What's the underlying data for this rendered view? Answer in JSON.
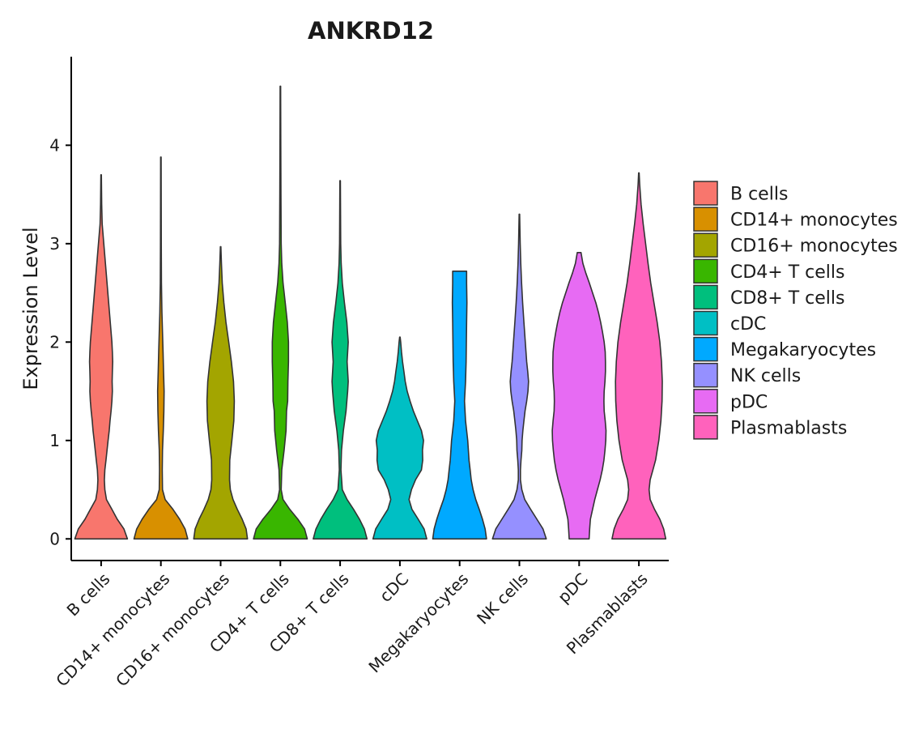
{
  "chart_data": {
    "type": "violin",
    "title": "ANKRD12",
    "xlabel": "",
    "ylabel": "Expression Level",
    "ylim": [
      -0.22,
      4.9
    ],
    "yticks": [
      0,
      1,
      2,
      3,
      4
    ],
    "legend_position": "right",
    "categories": [
      "B cells",
      "CD14+ monocytes",
      "CD16+ monocytes",
      "CD4+ T cells",
      "CD8+ T cells",
      "cDC",
      "Megakaryocytes",
      "NK cells",
      "pDC",
      "Plasmablasts"
    ],
    "series": [
      {
        "name": "B cells",
        "color": "#F8766D",
        "max": 3.7,
        "density": [
          [
            0,
            0.98
          ],
          [
            0.1,
            0.85
          ],
          [
            0.2,
            0.6
          ],
          [
            0.3,
            0.4
          ],
          [
            0.4,
            0.2
          ],
          [
            0.5,
            0.14
          ],
          [
            0.6,
            0.12
          ],
          [
            0.7,
            0.14
          ],
          [
            0.8,
            0.18
          ],
          [
            0.9,
            0.22
          ],
          [
            1.0,
            0.26
          ],
          [
            1.1,
            0.3
          ],
          [
            1.2,
            0.33
          ],
          [
            1.3,
            0.37
          ],
          [
            1.4,
            0.4
          ],
          [
            1.5,
            0.42
          ],
          [
            1.6,
            0.41
          ],
          [
            1.7,
            0.42
          ],
          [
            1.8,
            0.43
          ],
          [
            1.9,
            0.42
          ],
          [
            2.0,
            0.4
          ],
          [
            2.2,
            0.34
          ],
          [
            2.4,
            0.28
          ],
          [
            2.6,
            0.22
          ],
          [
            2.8,
            0.16
          ],
          [
            3.0,
            0.1
          ],
          [
            3.2,
            0.04
          ],
          [
            3.4,
            0.02
          ],
          [
            3.7,
            0.01
          ]
        ]
      },
      {
        "name": "CD14+ monocytes",
        "color": "#D89000",
        "max": 3.88,
        "density": [
          [
            0,
            1.0
          ],
          [
            0.1,
            0.9
          ],
          [
            0.2,
            0.7
          ],
          [
            0.3,
            0.45
          ],
          [
            0.4,
            0.16
          ],
          [
            0.5,
            0.06
          ],
          [
            0.7,
            0.05
          ],
          [
            0.9,
            0.06
          ],
          [
            1.1,
            0.09
          ],
          [
            1.3,
            0.11
          ],
          [
            1.5,
            0.12
          ],
          [
            1.7,
            0.1
          ],
          [
            1.9,
            0.08
          ],
          [
            2.1,
            0.06
          ],
          [
            2.3,
            0.04
          ],
          [
            2.6,
            0.02
          ],
          [
            3.0,
            0.015
          ],
          [
            3.88,
            0.01
          ]
        ]
      },
      {
        "name": "CD16+ monocytes",
        "color": "#A3A500",
        "max": 2.97,
        "density": [
          [
            0,
            1.0
          ],
          [
            0.1,
            0.95
          ],
          [
            0.2,
            0.8
          ],
          [
            0.3,
            0.62
          ],
          [
            0.4,
            0.46
          ],
          [
            0.5,
            0.36
          ],
          [
            0.6,
            0.33
          ],
          [
            0.8,
            0.34
          ],
          [
            1.0,
            0.42
          ],
          [
            1.2,
            0.49
          ],
          [
            1.4,
            0.51
          ],
          [
            1.6,
            0.48
          ],
          [
            1.8,
            0.4
          ],
          [
            2.0,
            0.3
          ],
          [
            2.2,
            0.2
          ],
          [
            2.4,
            0.12
          ],
          [
            2.6,
            0.06
          ],
          [
            2.8,
            0.03
          ],
          [
            2.97,
            0.01
          ]
        ]
      },
      {
        "name": "CD4+ T cells",
        "color": "#39B600",
        "max": 4.6,
        "density": [
          [
            0,
            1.0
          ],
          [
            0.1,
            0.9
          ],
          [
            0.2,
            0.65
          ],
          [
            0.3,
            0.35
          ],
          [
            0.4,
            0.1
          ],
          [
            0.5,
            0.03
          ],
          [
            0.7,
            0.05
          ],
          [
            0.9,
            0.14
          ],
          [
            1.1,
            0.21
          ],
          [
            1.3,
            0.23
          ],
          [
            1.4,
            0.27
          ],
          [
            1.6,
            0.28
          ],
          [
            1.8,
            0.3
          ],
          [
            2.0,
            0.3
          ],
          [
            2.2,
            0.26
          ],
          [
            2.4,
            0.18
          ],
          [
            2.6,
            0.1
          ],
          [
            2.8,
            0.05
          ],
          [
            3.0,
            0.03
          ],
          [
            3.5,
            0.02
          ],
          [
            4.0,
            0.015
          ],
          [
            4.6,
            0.01
          ]
        ]
      },
      {
        "name": "CD8+ T cells",
        "color": "#00BF7D",
        "max": 3.64,
        "density": [
          [
            0,
            1.0
          ],
          [
            0.1,
            0.9
          ],
          [
            0.2,
            0.72
          ],
          [
            0.3,
            0.5
          ],
          [
            0.4,
            0.26
          ],
          [
            0.5,
            0.08
          ],
          [
            0.7,
            0.03
          ],
          [
            0.9,
            0.05
          ],
          [
            1.1,
            0.12
          ],
          [
            1.3,
            0.22
          ],
          [
            1.5,
            0.28
          ],
          [
            1.6,
            0.3
          ],
          [
            1.8,
            0.26
          ],
          [
            2.0,
            0.3
          ],
          [
            2.2,
            0.25
          ],
          [
            2.4,
            0.16
          ],
          [
            2.6,
            0.08
          ],
          [
            2.8,
            0.04
          ],
          [
            3.0,
            0.02
          ],
          [
            3.64,
            0.01
          ]
        ]
      },
      {
        "name": "cDC",
        "color": "#00BFC4",
        "max": 2.05,
        "density": [
          [
            0,
            1.0
          ],
          [
            0.1,
            0.9
          ],
          [
            0.2,
            0.68
          ],
          [
            0.3,
            0.45
          ],
          [
            0.4,
            0.34
          ],
          [
            0.5,
            0.43
          ],
          [
            0.6,
            0.58
          ],
          [
            0.7,
            0.8
          ],
          [
            0.8,
            0.85
          ],
          [
            0.9,
            0.84
          ],
          [
            1.0,
            0.88
          ],
          [
            1.1,
            0.8
          ],
          [
            1.2,
            0.65
          ],
          [
            1.3,
            0.5
          ],
          [
            1.4,
            0.38
          ],
          [
            1.5,
            0.27
          ],
          [
            1.6,
            0.2
          ],
          [
            1.7,
            0.15
          ],
          [
            1.8,
            0.1
          ],
          [
            1.9,
            0.06
          ],
          [
            2.0,
            0.03
          ],
          [
            2.05,
            0.01
          ]
        ]
      },
      {
        "name": "Megakaryocytes",
        "color": "#00A9FF",
        "max": 2.72,
        "density": [
          [
            0,
            1.0
          ],
          [
            0.1,
            0.95
          ],
          [
            0.2,
            0.85
          ],
          [
            0.3,
            0.73
          ],
          [
            0.4,
            0.6
          ],
          [
            0.5,
            0.5
          ],
          [
            0.6,
            0.43
          ],
          [
            0.7,
            0.39
          ],
          [
            0.8,
            0.35
          ],
          [
            1.0,
            0.3
          ],
          [
            1.2,
            0.22
          ],
          [
            1.4,
            0.18
          ],
          [
            1.6,
            0.22
          ],
          [
            1.8,
            0.24
          ],
          [
            2.0,
            0.25
          ],
          [
            2.2,
            0.26
          ],
          [
            2.4,
            0.27
          ],
          [
            2.6,
            0.26
          ],
          [
            2.72,
            0.26
          ]
        ]
      },
      {
        "name": "NK cells",
        "color": "#9590FF",
        "max": 3.3,
        "density": [
          [
            0,
            1.0
          ],
          [
            0.1,
            0.88
          ],
          [
            0.2,
            0.65
          ],
          [
            0.3,
            0.42
          ],
          [
            0.4,
            0.2
          ],
          [
            0.5,
            0.09
          ],
          [
            0.6,
            0.04
          ],
          [
            0.7,
            0.04
          ],
          [
            0.8,
            0.06
          ],
          [
            0.9,
            0.09
          ],
          [
            1.0,
            0.1
          ],
          [
            1.1,
            0.13
          ],
          [
            1.2,
            0.17
          ],
          [
            1.3,
            0.21
          ],
          [
            1.4,
            0.27
          ],
          [
            1.5,
            0.32
          ],
          [
            1.6,
            0.34
          ],
          [
            1.7,
            0.31
          ],
          [
            1.8,
            0.27
          ],
          [
            2.0,
            0.22
          ],
          [
            2.2,
            0.17
          ],
          [
            2.4,
            0.12
          ],
          [
            2.6,
            0.08
          ],
          [
            2.8,
            0.05
          ],
          [
            3.0,
            0.03
          ],
          [
            3.3,
            0.01
          ]
        ]
      },
      {
        "name": "pDC",
        "color": "#E76BF3",
        "max": 2.91,
        "density": [
          [
            0,
            0.37
          ],
          [
            0.1,
            0.39
          ],
          [
            0.2,
            0.42
          ],
          [
            0.3,
            0.5
          ],
          [
            0.4,
            0.58
          ],
          [
            0.5,
            0.68
          ],
          [
            0.6,
            0.78
          ],
          [
            0.7,
            0.86
          ],
          [
            0.8,
            0.92
          ],
          [
            0.9,
            0.96
          ],
          [
            1.0,
            0.99
          ],
          [
            1.1,
            1.0
          ],
          [
            1.2,
            0.97
          ],
          [
            1.3,
            0.93
          ],
          [
            1.4,
            0.92
          ],
          [
            1.5,
            0.93
          ],
          [
            1.6,
            0.96
          ],
          [
            1.7,
            0.98
          ],
          [
            1.8,
            0.98
          ],
          [
            1.9,
            0.97
          ],
          [
            2.0,
            0.93
          ],
          [
            2.1,
            0.87
          ],
          [
            2.2,
            0.8
          ],
          [
            2.3,
            0.72
          ],
          [
            2.4,
            0.62
          ],
          [
            2.5,
            0.5
          ],
          [
            2.6,
            0.38
          ],
          [
            2.7,
            0.25
          ],
          [
            2.8,
            0.14
          ],
          [
            2.91,
            0.07
          ]
        ]
      },
      {
        "name": "Plasmablasts",
        "color": "#FF62BC",
        "max": 3.72,
        "density": [
          [
            0,
            1.0
          ],
          [
            0.1,
            0.92
          ],
          [
            0.2,
            0.78
          ],
          [
            0.3,
            0.58
          ],
          [
            0.4,
            0.42
          ],
          [
            0.5,
            0.38
          ],
          [
            0.6,
            0.42
          ],
          [
            0.7,
            0.52
          ],
          [
            0.8,
            0.62
          ],
          [
            1.0,
            0.74
          ],
          [
            1.2,
            0.82
          ],
          [
            1.4,
            0.86
          ],
          [
            1.6,
            0.87
          ],
          [
            1.8,
            0.84
          ],
          [
            2.0,
            0.78
          ],
          [
            2.2,
            0.68
          ],
          [
            2.4,
            0.56
          ],
          [
            2.6,
            0.44
          ],
          [
            2.8,
            0.34
          ],
          [
            3.0,
            0.25
          ],
          [
            3.2,
            0.16
          ],
          [
            3.4,
            0.08
          ],
          [
            3.6,
            0.03
          ],
          [
            3.72,
            0.01
          ]
        ]
      }
    ]
  }
}
